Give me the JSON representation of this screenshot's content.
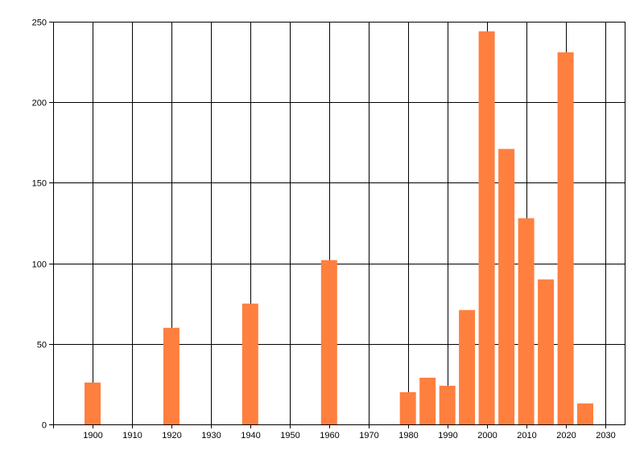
{
  "chart_data": {
    "type": "bar",
    "title": "",
    "xlabel": "",
    "ylabel": "",
    "xlim": [
      1890,
      2035
    ],
    "ylim": [
      0,
      250
    ],
    "x_ticks": [
      1900,
      1910,
      1920,
      1930,
      1940,
      1950,
      1960,
      1970,
      1980,
      1990,
      2000,
      2010,
      2020,
      2030
    ],
    "y_ticks": [
      0,
      50,
      100,
      150,
      200,
      250
    ],
    "grid": true,
    "legend": "none",
    "bar_color": "#FF7F3F",
    "bars": [
      {
        "x": 1900,
        "value": 26
      },
      {
        "x": 1920,
        "value": 60
      },
      {
        "x": 1940,
        "value": 75
      },
      {
        "x": 1960,
        "value": 102
      },
      {
        "x": 1980,
        "value": 20
      },
      {
        "x": 1985,
        "value": 29
      },
      {
        "x": 1990,
        "value": 24
      },
      {
        "x": 1995,
        "value": 71
      },
      {
        "x": 2000,
        "value": 244
      },
      {
        "x": 2005,
        "value": 171
      },
      {
        "x": 2010,
        "value": 128
      },
      {
        "x": 2015,
        "value": 90
      },
      {
        "x": 2020,
        "value": 231
      },
      {
        "x": 2025,
        "value": 13
      }
    ]
  }
}
